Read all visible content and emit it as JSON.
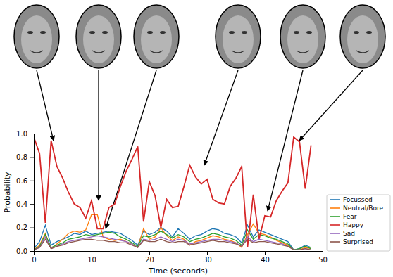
{
  "chart_data": {
    "type": "line",
    "x_label": "Time (seconds)",
    "y_label": "Probability",
    "x": [
      0,
      1,
      2,
      3,
      4,
      5,
      6,
      7,
      8,
      9,
      10,
      11,
      12,
      13,
      14,
      15,
      16,
      17,
      18,
      19,
      20,
      21,
      22,
      23,
      24,
      25,
      26,
      27,
      28,
      29,
      30,
      31,
      32,
      33,
      34,
      35,
      36,
      37,
      38,
      39,
      40,
      41,
      42,
      43,
      44,
      45,
      46,
      47,
      48
    ],
    "series": [
      {
        "name": "Focussed",
        "color": "#1f77b4",
        "values": [
          0.02,
          0.08,
          0.22,
          0.05,
          0.08,
          0.1,
          0.12,
          0.15,
          0.14,
          0.17,
          0.14,
          0.15,
          0.16,
          0.17,
          0.16,
          0.15,
          0.12,
          0.09,
          0.05,
          0.17,
          0.14,
          0.16,
          0.2,
          0.17,
          0.12,
          0.19,
          0.15,
          0.1,
          0.13,
          0.14,
          0.17,
          0.19,
          0.18,
          0.15,
          0.14,
          0.12,
          0.07,
          0.22,
          0.12,
          0.18,
          0.16,
          0.14,
          0.12,
          0.1,
          0.08,
          0.01,
          0.02,
          0.05,
          0.03
        ]
      },
      {
        "name": "Neutral/Bore",
        "color": "#ff7f0e",
        "values": [
          0.01,
          0.05,
          0.15,
          0.02,
          0.06,
          0.1,
          0.15,
          0.17,
          0.16,
          0.18,
          0.31,
          0.31,
          0.12,
          0.1,
          0.09,
          0.1,
          0.08,
          0.06,
          0.03,
          0.19,
          0.1,
          0.12,
          0.2,
          0.13,
          0.09,
          0.12,
          0.1,
          0.05,
          0.08,
          0.09,
          0.11,
          0.13,
          0.12,
          0.1,
          0.09,
          0.07,
          0.03,
          0.14,
          0.23,
          0.15,
          0.14,
          0.12,
          0.09,
          0.07,
          0.05,
          0.01,
          0.01,
          0.03,
          0.02
        ]
      },
      {
        "name": "Fear",
        "color": "#2ca02c",
        "values": [
          0.01,
          0.04,
          0.14,
          0.03,
          0.05,
          0.07,
          0.1,
          0.11,
          0.12,
          0.14,
          0.13,
          0.14,
          0.15,
          0.16,
          0.15,
          0.12,
          0.1,
          0.07,
          0.04,
          0.13,
          0.12,
          0.14,
          0.17,
          0.14,
          0.11,
          0.14,
          0.12,
          0.08,
          0.1,
          0.11,
          0.13,
          0.15,
          0.14,
          0.12,
          0.11,
          0.09,
          0.05,
          0.18,
          0.1,
          0.14,
          0.13,
          0.11,
          0.1,
          0.08,
          0.06,
          0.01,
          0.02,
          0.04,
          0.02
        ]
      },
      {
        "name": "Happy",
        "color": "#d62728",
        "values": [
          0.97,
          0.83,
          0.24,
          0.94,
          0.72,
          0.62,
          0.5,
          0.4,
          0.37,
          0.28,
          0.43,
          0.19,
          0.19,
          0.37,
          0.4,
          0.55,
          0.68,
          0.78,
          0.89,
          0.25,
          0.59,
          0.47,
          0.2,
          0.44,
          0.37,
          0.38,
          0.55,
          0.73,
          0.63,
          0.57,
          0.61,
          0.44,
          0.41,
          0.4,
          0.55,
          0.62,
          0.72,
          0.03,
          0.48,
          0.1,
          0.3,
          0.29,
          0.43,
          0.51,
          0.58,
          0.97,
          0.93,
          0.53,
          0.9
        ]
      },
      {
        "name": "Sad",
        "color": "#9467bd",
        "values": [
          0.01,
          0.03,
          0.12,
          0.02,
          0.04,
          0.06,
          0.08,
          0.09,
          0.1,
          0.11,
          0.12,
          0.13,
          0.12,
          0.11,
          0.1,
          0.09,
          0.08,
          0.06,
          0.03,
          0.1,
          0.09,
          0.1,
          0.12,
          0.1,
          0.08,
          0.1,
          0.09,
          0.06,
          0.07,
          0.08,
          0.09,
          0.1,
          0.1,
          0.09,
          0.08,
          0.07,
          0.04,
          0.12,
          0.08,
          0.1,
          0.09,
          0.08,
          0.07,
          0.06,
          0.04,
          0.01,
          0.01,
          0.02,
          0.01
        ]
      },
      {
        "name": "Surprised",
        "color": "#8c564b",
        "values": [
          0.01,
          0.03,
          0.1,
          0.02,
          0.04,
          0.05,
          0.07,
          0.08,
          0.09,
          0.1,
          0.1,
          0.09,
          0.09,
          0.08,
          0.08,
          0.07,
          0.07,
          0.05,
          0.03,
          0.09,
          0.08,
          0.08,
          0.1,
          0.08,
          0.07,
          0.08,
          0.08,
          0.05,
          0.06,
          0.07,
          0.08,
          0.09,
          0.08,
          0.08,
          0.07,
          0.06,
          0.04,
          0.1,
          0.07,
          0.08,
          0.08,
          0.07,
          0.06,
          0.05,
          0.04,
          0.01,
          0.01,
          0.02,
          0.01
        ]
      }
    ],
    "xlim": [
      0,
      50
    ],
    "ylim": [
      0,
      1
    ],
    "xticks": [
      0,
      10,
      20,
      30,
      40,
      50
    ],
    "yticks": [
      {
        "value": 0,
        "label": "0.0"
      },
      0.2,
      0.4,
      0.6,
      0.8,
      {
        "value": 1,
        "label": "1.0"
      }
    ],
    "grid": false,
    "legend": "lower right"
  }
}
